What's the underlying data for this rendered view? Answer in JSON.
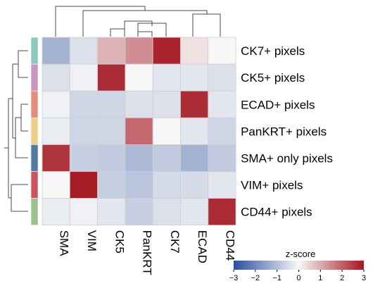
{
  "chart_data": {
    "type": "heatmap",
    "title": "",
    "rows": [
      "CK7+ pixels",
      "CK5+ pixels",
      "ECAD+ pixels",
      "PanKRT+ pixels",
      "SMA+ only pixels",
      "VIM+ pixels",
      "CD44+ pixels"
    ],
    "columns": [
      "SMA",
      "VIM",
      "CK5",
      "PanKRT",
      "CK7",
      "ECAD",
      "CD44"
    ],
    "values": [
      [
        -1.2,
        -0.4,
        0.9,
        1.4,
        2.8,
        0.3,
        0.0
      ],
      [
        -0.4,
        -0.1,
        2.7,
        0.0,
        -0.3,
        -0.3,
        -0.4
      ],
      [
        -0.1,
        -0.6,
        -0.6,
        -0.4,
        -0.4,
        2.7,
        -0.3
      ],
      [
        -0.2,
        -0.6,
        -0.6,
        1.9,
        0.0,
        -0.3,
        -0.6
      ],
      [
        2.6,
        -0.7,
        -0.8,
        -1.1,
        -0.8,
        -1.2,
        -0.8
      ],
      [
        0.0,
        2.9,
        -0.7,
        -0.9,
        -0.5,
        -0.5,
        -0.3
      ],
      [
        -0.2,
        -0.1,
        -0.3,
        -0.7,
        -0.4,
        -0.3,
        2.7
      ]
    ],
    "row_colors": [
      "#8ec9bd",
      "#c996bd",
      "#e0907a",
      "#efcd8a",
      "#4f7ba6",
      "#c9545c",
      "#9cc08e"
    ],
    "colorbar": {
      "label": "z-score",
      "ticks": [
        -3,
        -2,
        -1,
        0,
        1,
        2,
        3
      ],
      "range": [
        -3,
        3
      ],
      "low_color": "#2b4e9e",
      "mid_color": "#f7f7f7",
      "high_color": "#a3151f"
    },
    "grid": true,
    "legend_position": "bottom-right"
  }
}
